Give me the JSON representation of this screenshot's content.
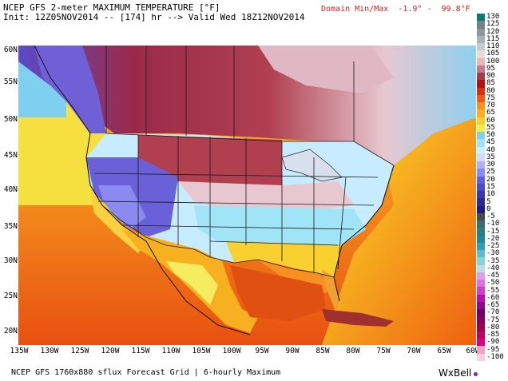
{
  "header": {
    "line1": "NCEP GFS 2-meter MAXIMUM TEMPERATURE [°F]",
    "line2": "Init: 12Z05NOV2014 -- [174] hr --> Valid Wed 18Z12NOV2014",
    "domain_minmax": "Domain Min/Max  -1.9° -  99.8°F"
  },
  "footer": {
    "text": "NCEP GFS 1760x880 sflux Forecast Grid | 6-hourly Maximum",
    "logo": "WxBell"
  },
  "map": {
    "lat_labels": [
      "60N",
      "55N",
      "50N",
      "45N",
      "40N",
      "35N",
      "30N",
      "25N",
      "20N"
    ],
    "lon_labels": [
      "135W",
      "130W",
      "125W",
      "120W",
      "115W",
      "110W",
      "105W",
      "100W",
      "95W",
      "90W",
      "85W",
      "80W",
      "75W",
      "70W",
      "65W",
      "60W"
    ]
  },
  "colorbar": {
    "labels": [
      "130",
      "125",
      "120",
      "115",
      "110",
      "105",
      "100",
      "95",
      "90",
      "85",
      "80",
      "75",
      "70",
      "65",
      "60",
      "55",
      "50",
      "45",
      "40",
      "35",
      "30",
      "25",
      "20",
      "15",
      "10",
      "5",
      "0",
      "-5",
      "-10",
      "-15",
      "-20",
      "-25",
      "-30",
      "-35",
      "-40",
      "-45",
      "-50",
      "-55",
      "-60",
      "-65",
      "-70",
      "-75",
      "-80",
      "-85",
      "-90",
      "-95",
      "-100"
    ],
    "colors": [
      "#0a7c6c",
      "#7a8088",
      "#8e96a0",
      "#a8b0b8",
      "#c4ccd2",
      "#ecd8d8",
      "#e6b8b8",
      "#c87a84",
      "#a23a4a",
      "#b41010",
      "#d93010",
      "#f05a10",
      "#f79020",
      "#f8b020",
      "#f8d030",
      "#f5ec40",
      "#7fd0f0",
      "#a0e4f8",
      "#c8f0ff",
      "#d8d8ff",
      "#b0b0ff",
      "#8a8af8",
      "#6060e0",
      "#4a4ac8",
      "#3c34b0",
      "#2c2898",
      "#201880",
      "#4a4a4a",
      "#3a6e6e",
      "#2c7e7e",
      "#208a94",
      "#30a0b0",
      "#60bcc8",
      "#88d4dc",
      "#bcdcec",
      "#e0a0e8",
      "#e070e0",
      "#d040c8",
      "#b810b0",
      "#900890",
      "#700070",
      "#880060",
      "#a00050",
      "#c00060",
      "#e00080",
      "#f0a0c0",
      "#f8d0e0"
    ]
  }
}
